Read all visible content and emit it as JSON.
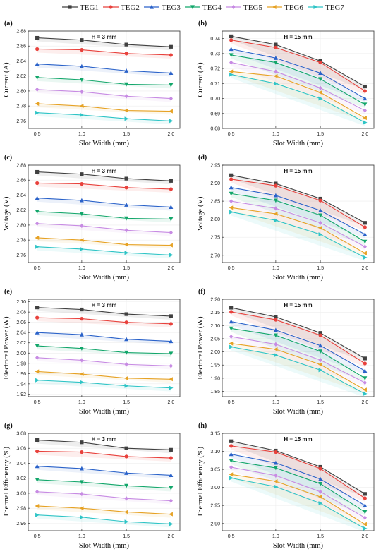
{
  "legend": {
    "entries": [
      "TEG1",
      "TEG2",
      "TEG3",
      "TEG4",
      "TEG5",
      "TEG6",
      "TEG7"
    ],
    "colors": [
      "#404040",
      "#e8413c",
      "#2a62c9",
      "#12a66a",
      "#c78be3",
      "#e6a225",
      "#2ec4c6"
    ],
    "markers": [
      "square",
      "circle",
      "triangle-up",
      "triangle-down",
      "diamond",
      "triangle-left",
      "triangle-right"
    ]
  },
  "chart_data": [
    {
      "id": "a",
      "panel_label": "(a)",
      "type": "line",
      "title": "H = 3 mm",
      "xlabel": "Slot Width (mm)",
      "ylabel": "Current (A)",
      "x": [
        0.5,
        1.0,
        1.5,
        2.0
      ],
      "xticks": [
        0.5,
        1.0,
        1.5,
        2.0
      ],
      "xlim": [
        0.4,
        2.1
      ],
      "ylim": [
        2.75,
        2.88
      ],
      "yticks": [
        "2.76",
        "2.78",
        "2.80",
        "2.82",
        "2.84",
        "2.86",
        "2.88"
      ],
      "series": [
        {
          "name": "TEG1",
          "values": [
            2.871,
            2.868,
            2.862,
            2.859
          ]
        },
        {
          "name": "TEG2",
          "values": [
            2.856,
            2.855,
            2.85,
            2.848
          ]
        },
        {
          "name": "TEG3",
          "values": [
            2.836,
            2.833,
            2.827,
            2.824
          ]
        },
        {
          "name": "TEG4",
          "values": [
            2.818,
            2.815,
            2.809,
            2.808
          ]
        },
        {
          "name": "TEG5",
          "values": [
            2.802,
            2.799,
            2.793,
            2.79
          ]
        },
        {
          "name": "TEG6",
          "values": [
            2.783,
            2.78,
            2.774,
            2.773
          ]
        },
        {
          "name": "TEG7",
          "values": [
            2.771,
            2.768,
            2.763,
            2.76
          ]
        }
      ]
    },
    {
      "id": "b",
      "panel_label": "(b)",
      "type": "line",
      "title": "H = 15 mm",
      "xlabel": "Slot Width (mm)",
      "ylabel": "Current (A)",
      "x": [
        0.5,
        1.0,
        1.5,
        2.0
      ],
      "xticks": [
        0.5,
        1.0,
        1.5,
        2.0
      ],
      "xlim": [
        0.4,
        2.1
      ],
      "ylim": [
        0.68,
        0.745
      ],
      "yticks": [
        "0.68",
        "0.69",
        "0.70",
        "0.71",
        "0.72",
        "0.73",
        "0.74"
      ],
      "series": [
        {
          "name": "TEG1",
          "values": [
            0.7415,
            0.736,
            0.725,
            0.708
          ]
        },
        {
          "name": "TEG2",
          "values": [
            0.739,
            0.734,
            0.724,
            0.705
          ]
        },
        {
          "name": "TEG3",
          "values": [
            0.733,
            0.727,
            0.717,
            0.7
          ]
        },
        {
          "name": "TEG4",
          "values": [
            0.729,
            0.724,
            0.713,
            0.696
          ]
        },
        {
          "name": "TEG5",
          "values": [
            0.724,
            0.718,
            0.707,
            0.692
          ]
        },
        {
          "name": "TEG6",
          "values": [
            0.718,
            0.715,
            0.704,
            0.687
          ]
        },
        {
          "name": "TEG7",
          "values": [
            0.716,
            0.71,
            0.7,
            0.684
          ]
        }
      ]
    },
    {
      "id": "c",
      "panel_label": "(c)",
      "type": "line",
      "title": "H = 3 mm",
      "xlabel": "Slot Width (mm)",
      "ylabel": "Voltage (V)",
      "x": [
        0.5,
        1.0,
        1.5,
        2.0
      ],
      "xticks": [
        0.5,
        1.0,
        1.5,
        2.0
      ],
      "xlim": [
        0.4,
        2.1
      ],
      "ylim": [
        2.75,
        2.88
      ],
      "yticks": [
        "2.76",
        "2.78",
        "2.80",
        "2.82",
        "2.84",
        "2.86",
        "2.88"
      ],
      "series": [
        {
          "name": "TEG1",
          "values": [
            2.871,
            2.868,
            2.862,
            2.859
          ]
        },
        {
          "name": "TEG2",
          "values": [
            2.856,
            2.855,
            2.85,
            2.848
          ]
        },
        {
          "name": "TEG3",
          "values": [
            2.836,
            2.833,
            2.827,
            2.824
          ]
        },
        {
          "name": "TEG4",
          "values": [
            2.818,
            2.815,
            2.809,
            2.808
          ]
        },
        {
          "name": "TEG5",
          "values": [
            2.802,
            2.799,
            2.793,
            2.79
          ]
        },
        {
          "name": "TEG6",
          "values": [
            2.783,
            2.78,
            2.774,
            2.773
          ]
        },
        {
          "name": "TEG7",
          "values": [
            2.771,
            2.768,
            2.763,
            2.76
          ]
        }
      ]
    },
    {
      "id": "d",
      "panel_label": "(d)",
      "type": "line",
      "title": "H = 15 mm",
      "xlabel": "Slot Width (mm)",
      "ylabel": "Voltage (V)",
      "x": [
        0.5,
        1.0,
        1.5,
        2.0
      ],
      "xticks": [
        0.5,
        1.0,
        1.5,
        2.0
      ],
      "xlim": [
        0.4,
        2.1
      ],
      "ylim": [
        2.68,
        2.95
      ],
      "yticks": [
        "2.70",
        "2.75",
        "2.80",
        "2.85",
        "2.90",
        "2.95"
      ],
      "series": [
        {
          "name": "TEG1",
          "values": [
            2.922,
            2.899,
            2.857,
            2.79
          ]
        },
        {
          "name": "TEG2",
          "values": [
            2.911,
            2.893,
            2.852,
            2.778
          ]
        },
        {
          "name": "TEG3",
          "values": [
            2.888,
            2.866,
            2.824,
            2.758
          ]
        },
        {
          "name": "TEG4",
          "values": [
            2.871,
            2.852,
            2.811,
            2.738
          ]
        },
        {
          "name": "TEG5",
          "values": [
            2.85,
            2.83,
            2.79,
            2.724
          ]
        },
        {
          "name": "TEG6",
          "values": [
            2.832,
            2.815,
            2.776,
            2.706
          ]
        },
        {
          "name": "TEG7",
          "values": [
            2.82,
            2.797,
            2.758,
            2.694
          ]
        }
      ]
    },
    {
      "id": "e",
      "panel_label": "(e)",
      "type": "line",
      "title": "H = 3 mm",
      "xlabel": "Slot Width (mm)",
      "ylabel": "Electrical Power (W)",
      "x": [
        0.5,
        1.0,
        1.5,
        2.0
      ],
      "xticks": [
        0.5,
        1.0,
        1.5,
        2.0
      ],
      "xlim": [
        0.4,
        2.1
      ],
      "ylim": [
        1.915,
        2.105
      ],
      "yticks": [
        "1.92",
        "1.94",
        "1.96",
        "1.98",
        "2.00",
        "2.02",
        "2.04",
        "2.06",
        "2.08",
        "2.10"
      ],
      "series": [
        {
          "name": "TEG1",
          "values": [
            2.089,
            2.085,
            2.076,
            2.072
          ]
        },
        {
          "name": "TEG2",
          "values": [
            2.069,
            2.067,
            2.06,
            2.057
          ]
        },
        {
          "name": "TEG3",
          "values": [
            2.04,
            2.036,
            2.027,
            2.023
          ]
        },
        {
          "name": "TEG4",
          "values": [
            2.014,
            2.009,
            2.001,
            1.999
          ]
        },
        {
          "name": "TEG5",
          "values": [
            1.991,
            1.986,
            1.978,
            1.975
          ]
        },
        {
          "name": "TEG6",
          "values": [
            1.964,
            1.959,
            1.951,
            1.949
          ]
        },
        {
          "name": "TEG7",
          "values": [
            1.947,
            1.943,
            1.936,
            1.932
          ]
        }
      ]
    },
    {
      "id": "f",
      "panel_label": "(f)",
      "type": "line",
      "title": "H = 15 mm",
      "xlabel": "Slot Width (mm)",
      "ylabel": "Electrical Power (W)",
      "x": [
        0.5,
        1.0,
        1.5,
        2.0
      ],
      "xticks": [
        0.5,
        1.0,
        1.5,
        2.0
      ],
      "xlim": [
        0.4,
        2.1
      ],
      "ylim": [
        1.83,
        2.2
      ],
      "yticks": [
        "1.85",
        "1.90",
        "1.95",
        "2.00",
        "2.05",
        "2.10",
        "2.15",
        "2.20"
      ],
      "series": [
        {
          "name": "TEG1",
          "values": [
            2.168,
            2.133,
            2.072,
            1.975
          ]
        },
        {
          "name": "TEG2",
          "values": [
            2.152,
            2.122,
            2.063,
            1.956
          ]
        },
        {
          "name": "TEG3",
          "values": [
            2.115,
            2.083,
            2.024,
            1.928
          ]
        },
        {
          "name": "TEG4",
          "values": [
            2.089,
            2.063,
            2.002,
            1.9
          ]
        },
        {
          "name": "TEG5",
          "values": [
            2.058,
            2.029,
            1.969,
            1.883
          ]
        },
        {
          "name": "TEG6",
          "values": [
            2.032,
            2.01,
            1.952,
            1.856
          ]
        },
        {
          "name": "TEG7",
          "values": [
            2.019,
            1.988,
            1.931,
            1.841
          ]
        }
      ]
    },
    {
      "id": "g",
      "panel_label": "(g)",
      "type": "line",
      "title": "H = 3 mm",
      "xlabel": "Slot Width (mm)",
      "ylabel": "Thermal Efficiency (%)",
      "x": [
        0.5,
        1.0,
        1.5,
        2.0
      ],
      "xticks": [
        0.5,
        1.0,
        1.5,
        2.0
      ],
      "xlim": [
        0.4,
        2.1
      ],
      "ylim": [
        2.95,
        3.08
      ],
      "yticks": [
        "2.96",
        "2.98",
        "3.00",
        "3.02",
        "3.04",
        "3.06",
        "3.08"
      ],
      "series": [
        {
          "name": "TEG1",
          "values": [
            3.071,
            3.068,
            3.06,
            3.058
          ]
        },
        {
          "name": "TEG2",
          "values": [
            3.056,
            3.055,
            3.049,
            3.047
          ]
        },
        {
          "name": "TEG3",
          "values": [
            3.036,
            3.033,
            3.027,
            3.024
          ]
        },
        {
          "name": "TEG4",
          "values": [
            3.018,
            3.015,
            3.01,
            3.007
          ]
        },
        {
          "name": "TEG5",
          "values": [
            3.002,
            2.999,
            2.993,
            2.99
          ]
        },
        {
          "name": "TEG6",
          "values": [
            2.983,
            2.98,
            2.975,
            2.972
          ]
        },
        {
          "name": "TEG7",
          "values": [
            2.971,
            2.968,
            2.962,
            2.959
          ]
        }
      ]
    },
    {
      "id": "h",
      "panel_label": "(h)",
      "type": "line",
      "title": "H = 15 mm",
      "xlabel": "Slot Width (mm)",
      "ylabel": "Thermal Efficiency (%)",
      "x": [
        0.5,
        1.0,
        1.5,
        2.0
      ],
      "xticks": [
        0.5,
        1.0,
        1.5,
        2.0
      ],
      "xlim": [
        0.4,
        2.1
      ],
      "ylim": [
        2.88,
        3.15
      ],
      "yticks": [
        "2.90",
        "2.95",
        "3.00",
        "3.05",
        "3.10",
        "3.15"
      ],
      "series": [
        {
          "name": "TEG1",
          "values": [
            3.128,
            3.102,
            3.057,
            2.982
          ]
        },
        {
          "name": "TEG2",
          "values": [
            3.115,
            3.098,
            3.052,
            2.97
          ]
        },
        {
          "name": "TEG3",
          "values": [
            3.092,
            3.068,
            3.023,
            2.95
          ]
        },
        {
          "name": "TEG4",
          "values": [
            3.074,
            3.054,
            3.01,
            2.932
          ]
        },
        {
          "name": "TEG5",
          "values": [
            3.056,
            3.033,
            2.988,
            2.916
          ]
        },
        {
          "name": "TEG6",
          "values": [
            3.036,
            3.017,
            2.974,
            2.898
          ]
        },
        {
          "name": "TEG7",
          "values": [
            3.026,
            3.002,
            2.956,
            2.886
          ]
        }
      ]
    }
  ]
}
